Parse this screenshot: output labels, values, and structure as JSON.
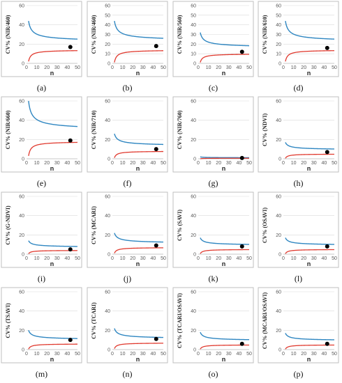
{
  "colors": {
    "upper_series": "#2e86c1",
    "lower_series": "#e03a2f",
    "point": "#000000"
  },
  "axes": {
    "x_label": "n",
    "x_ticks": [
      "0",
      "10",
      "20",
      "30",
      "40",
      "50"
    ],
    "xlim": [
      0,
      50
    ]
  },
  "chart_data": [
    {
      "type": "line",
      "caption": "(a)",
      "ylabel": "CV% (NIR/460)",
      "ylim": [
        0,
        60
      ],
      "y_ticks": [
        "0",
        "20",
        "40",
        "60"
      ],
      "upper": {
        "start": 44,
        "end": 22
      },
      "lower": {
        "start": 2,
        "end": 14
      },
      "point": {
        "x": 43,
        "y": 17
      }
    },
    {
      "type": "line",
      "caption": "(b)",
      "ylabel": "CV% (NIR/460)",
      "ylim": [
        0,
        60
      ],
      "y_ticks": [
        "0",
        "10",
        "20",
        "30",
        "40",
        "50",
        "60"
      ],
      "upper": {
        "start": 44,
        "end": 23
      },
      "lower": {
        "start": 1,
        "end": 14
      },
      "point": {
        "x": 43,
        "y": 18
      }
    },
    {
      "type": "line",
      "caption": "(c)",
      "ylabel": "CV% (NIR/560)",
      "ylim": [
        0,
        60
      ],
      "y_ticks": [
        "0",
        "10",
        "20",
        "30",
        "40",
        "50",
        "60"
      ],
      "upper": {
        "start": 32,
        "end": 16
      },
      "lower": {
        "start": 1,
        "end": 10
      },
      "point": {
        "x": 43,
        "y": 12
      }
    },
    {
      "type": "line",
      "caption": "(d)",
      "ylabel": "CV% (NIR/610)",
      "ylim": [
        0,
        60
      ],
      "y_ticks": [
        "0",
        "10",
        "20",
        "30",
        "40",
        "50",
        "60"
      ],
      "upper": {
        "start": 44,
        "end": 22
      },
      "lower": {
        "start": 2,
        "end": 14
      },
      "point": {
        "x": 43,
        "y": 16
      }
    },
    {
      "type": "line",
      "caption": "(e)",
      "ylabel": "CV% (NIR/660)",
      "ylim": [
        0,
        60
      ],
      "y_ticks": [
        "0",
        "20",
        "40",
        "60"
      ],
      "upper": {
        "start": 60,
        "end": 29
      },
      "lower": {
        "start": 3,
        "end": 18
      },
      "point": {
        "x": 43,
        "y": 19
      }
    },
    {
      "type": "line",
      "caption": "(f)",
      "ylabel": "CV% (NIR/710)",
      "ylim": [
        0,
        60
      ],
      "y_ticks": [
        "0",
        "20",
        "40",
        "60"
      ],
      "upper": {
        "start": 26,
        "end": 13
      },
      "lower": {
        "start": 1,
        "end": 8
      },
      "point": {
        "x": 43,
        "y": 10
      }
    },
    {
      "type": "line",
      "caption": "(g)",
      "ylabel": "CV% (NIR/760)",
      "ylim": [
        0,
        60
      ],
      "y_ticks": [
        "0",
        "20",
        "40",
        "60"
      ],
      "upper": {
        "start": 2,
        "end": 1
      },
      "lower": {
        "start": 0,
        "end": 0.6
      },
      "point": {
        "x": 43,
        "y": 0.8
      }
    },
    {
      "type": "line",
      "caption": "(h)",
      "ylabel": "CV% (NDVI)",
      "ylim": [
        0,
        60
      ],
      "y_ticks": [
        "0",
        "20",
        "40",
        "60"
      ],
      "upper": {
        "start": 17,
        "end": 9
      },
      "lower": {
        "start": 0.5,
        "end": 5
      },
      "point": {
        "x": 43,
        "y": 7
      }
    },
    {
      "type": "line",
      "caption": "(i)",
      "ylabel": "CV% (G-NDVI)",
      "ylim": [
        0,
        60
      ],
      "y_ticks": [
        "0",
        "20",
        "40",
        "60"
      ],
      "upper": {
        "start": 14,
        "end": 7
      },
      "lower": {
        "start": 0.5,
        "end": 4
      },
      "point": {
        "x": 43,
        "y": 5
      }
    },
    {
      "type": "line",
      "caption": "(j)",
      "ylabel": "CV% (MCARI)",
      "ylim": [
        0,
        60
      ],
      "y_ticks": [
        "0",
        "20",
        "40",
        "60"
      ],
      "upper": {
        "start": 22,
        "end": 11
      },
      "lower": {
        "start": 1,
        "end": 7
      },
      "point": {
        "x": 43,
        "y": 9
      }
    },
    {
      "type": "line",
      "caption": "(k)",
      "ylabel": "CV% (SAVI)",
      "ylim": [
        0,
        60
      ],
      "y_ticks": [
        "0",
        "20",
        "40",
        "60"
      ],
      "upper": {
        "start": 17,
        "end": 9
      },
      "lower": {
        "start": 0.5,
        "end": 5
      },
      "point": {
        "x": 43,
        "y": 8
      }
    },
    {
      "type": "line",
      "caption": "(l)",
      "ylabel": "CV% (OSAVI)",
      "ylim": [
        0,
        60
      ],
      "y_ticks": [
        "0",
        "20",
        "40",
        "60"
      ],
      "upper": {
        "start": 17,
        "end": 9
      },
      "lower": {
        "start": 0.5,
        "end": 5
      },
      "point": {
        "x": 43,
        "y": 8
      }
    },
    {
      "type": "line",
      "caption": "(m)",
      "ylabel": "CV% (TSAVI)",
      "ylim": [
        0,
        60
      ],
      "y_ticks": [
        "0",
        "20",
        "40",
        "60"
      ],
      "upper": {
        "start": 20,
        "end": 10
      },
      "lower": {
        "start": 0.5,
        "end": 6
      },
      "point": {
        "x": 43,
        "y": 10
      }
    },
    {
      "type": "line",
      "caption": "(n)",
      "ylabel": "CV% (TCARI)",
      "ylim": [
        0,
        60
      ],
      "y_ticks": [
        "0",
        "20",
        "40",
        "60"
      ],
      "upper": {
        "start": 22,
        "end": 11
      },
      "lower": {
        "start": 1,
        "end": 7
      },
      "point": {
        "x": 43,
        "y": 11
      }
    },
    {
      "type": "line",
      "caption": "(o)",
      "ylabel": "CV% (TCARI/OSAVI)",
      "ylim": [
        0,
        60
      ],
      "y_ticks": [
        "0",
        "20",
        "40",
        "60"
      ],
      "upper": {
        "start": 18,
        "end": 9
      },
      "lower": {
        "start": 0.5,
        "end": 5
      },
      "point": {
        "x": 43,
        "y": 6
      }
    },
    {
      "type": "line",
      "caption": "(p)",
      "ylabel": "CV% (MCARI/OSAVI)",
      "ylim": [
        0,
        60
      ],
      "y_ticks": [
        "0",
        "20",
        "40",
        "60"
      ],
      "upper": {
        "start": 17,
        "end": 9
      },
      "lower": {
        "start": 0.5,
        "end": 5
      },
      "point": {
        "x": 43,
        "y": 6
      }
    }
  ]
}
